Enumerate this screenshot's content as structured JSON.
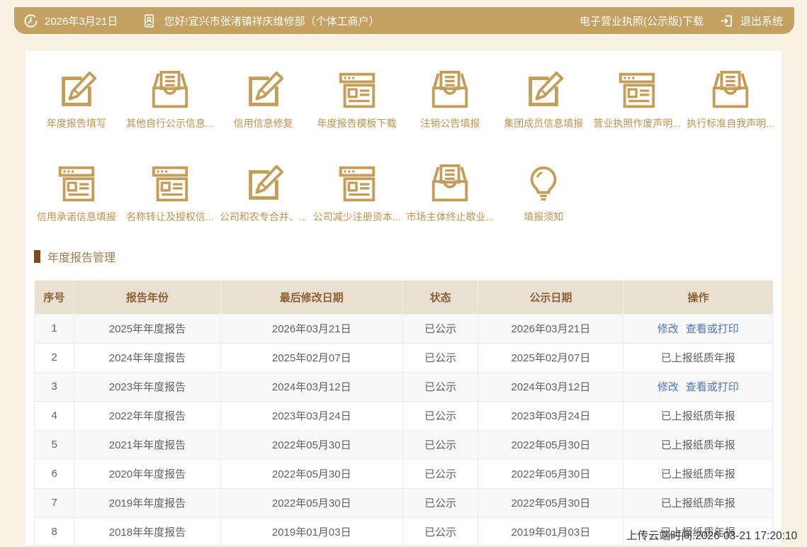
{
  "colors": {
    "header_gold": "#c5a161",
    "icon_gold": "#c49e58",
    "label_gold": "#c0934e",
    "link_blue": "#4f73c2",
    "title_brown": "#9d7b50",
    "title_bullet": "#7a4a1c",
    "table_header_bg": "#eae0d2",
    "table_header_text": "#8a6138",
    "page_bg": "#f8f2e5"
  },
  "header": {
    "date": "2026年3月21日",
    "greeting": "您好!宜兴市张渚镇祥庆维修部（个体工商户）",
    "license_download": "电子营业执照(公示版)下载",
    "logout": "退出系统"
  },
  "shortcuts": {
    "row1": [
      {
        "label": "年度报告填写",
        "icon": "edit-icon"
      },
      {
        "label": "其他自行公示信息...",
        "icon": "inbox-icon"
      },
      {
        "label": "信用信息修复",
        "icon": "edit-icon"
      },
      {
        "label": "年度报告模板下载",
        "icon": "form-icon"
      },
      {
        "label": "注销公告填报",
        "icon": "inbox-icon"
      },
      {
        "label": "集团成员信息填报",
        "icon": "edit-icon"
      },
      {
        "label": "营业执照作废声明...",
        "icon": "form-icon"
      },
      {
        "label": "执行标准自我声明...",
        "icon": "inbox-icon"
      }
    ],
    "row2": [
      {
        "label": "信用承诺信息填报",
        "icon": "form-icon"
      },
      {
        "label": "名称转让及授权信...",
        "icon": "form-icon"
      },
      {
        "label": "公司和农专合并、...",
        "icon": "edit-icon"
      },
      {
        "label": "公司减少注册资本...",
        "icon": "form-icon"
      },
      {
        "label": "市场主体终止歇业...",
        "icon": "inbox-icon"
      },
      {
        "label": "填报须知",
        "icon": "bulb-icon"
      }
    ]
  },
  "section": {
    "title": "年度报告管理"
  },
  "table": {
    "headers": [
      "序号",
      "报告年份",
      "最后修改日期",
      "状态",
      "公示日期",
      "操作"
    ],
    "rows": [
      {
        "no": "1",
        "year": "2025年年度报告",
        "modified": "2026年03月21日",
        "status": "已公示",
        "publish": "2026年03月21日",
        "ops": {
          "type": "links",
          "items": [
            "修改",
            "查看或打印"
          ]
        }
      },
      {
        "no": "2",
        "year": "2024年年度报告",
        "modified": "2025年02月07日",
        "status": "已公示",
        "publish": "2025年02月07日",
        "ops": {
          "type": "text",
          "items": [
            "已上报纸质年报"
          ]
        }
      },
      {
        "no": "3",
        "year": "2023年年度报告",
        "modified": "2024年03月12日",
        "status": "已公示",
        "publish": "2024年03月12日",
        "ops": {
          "type": "links",
          "items": [
            "修改",
            "查看或打印"
          ]
        }
      },
      {
        "no": "4",
        "year": "2022年年度报告",
        "modified": "2023年03月24日",
        "status": "已公示",
        "publish": "2023年03月24日",
        "ops": {
          "type": "text",
          "items": [
            "已上报纸质年报"
          ]
        }
      },
      {
        "no": "5",
        "year": "2021年年度报告",
        "modified": "2022年05月30日",
        "status": "已公示",
        "publish": "2022年05月30日",
        "ops": {
          "type": "text",
          "items": [
            "已上报纸质年报"
          ]
        }
      },
      {
        "no": "6",
        "year": "2020年年度报告",
        "modified": "2022年05月30日",
        "status": "已公示",
        "publish": "2022年05月30日",
        "ops": {
          "type": "text",
          "items": [
            "已上报纸质年报"
          ]
        }
      },
      {
        "no": "7",
        "year": "2019年年度报告",
        "modified": "2022年05月30日",
        "status": "已公示",
        "publish": "2022年05月30日",
        "ops": {
          "type": "text",
          "items": [
            "已上报纸质年报"
          ]
        }
      },
      {
        "no": "8",
        "year": "2018年年度报告",
        "modified": "2019年01月03日",
        "status": "已公示",
        "publish": "2019年01月03日",
        "ops": {
          "type": "text",
          "items": [
            "已上报纸质年报"
          ]
        }
      }
    ]
  },
  "overlay": {
    "upload_time": "上传云端时间:2026-03-21 17:20:10"
  }
}
